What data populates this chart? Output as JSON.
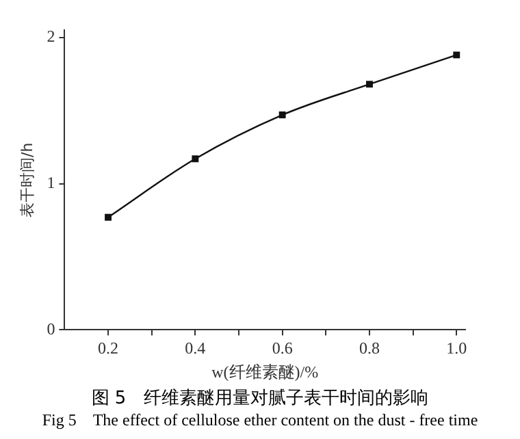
{
  "chart_data": {
    "type": "line",
    "title": "图 5　纤维素醚用量对腻子表干时间的影响",
    "subtitle": "Fig 5　The effect of cellulose ether content on the dust - free time",
    "xlabel": "w(纤维素醚)/%",
    "ylabel": "表干时间/h",
    "x": [
      0.2,
      0.4,
      0.6,
      0.8,
      1.0
    ],
    "series": [
      {
        "color": "#111111",
        "values": [
          0.77,
          1.17,
          1.47,
          1.68,
          1.88
        ]
      }
    ],
    "xlim": [
      0.1,
      1.02
    ],
    "xticks": [
      0.2,
      {
        "value": 0.3,
        "label": null
      },
      0.4,
      {
        "value": 0.5,
        "label": null
      },
      0.6,
      {
        "value": 0.7,
        "label": null
      },
      0.8,
      {
        "value": 0.9,
        "label": null
      },
      {
        "value": 1.0,
        "label": "1.0"
      }
    ],
    "ylim": [
      0,
      2.05
    ],
    "yticks": [
      0,
      1,
      2
    ],
    "grid": false,
    "legend": false,
    "marker": "square",
    "line_style": "solid"
  }
}
